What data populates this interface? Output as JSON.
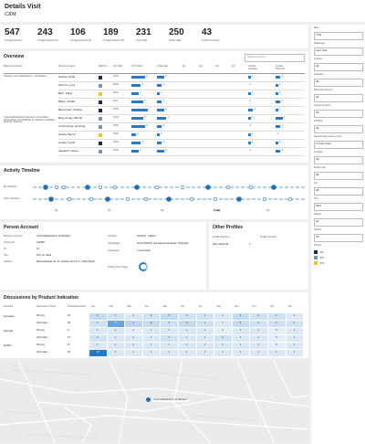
{
  "header": {
    "title": "Details Visit",
    "subtitle": "CRM"
  },
  "kpis": [
    {
      "value": "547",
      "label": "# Target Doctors"
    },
    {
      "value": "243",
      "label": "# Target Doctors P1"
    },
    {
      "value": "106",
      "label": "# Target Doctors P2"
    },
    {
      "value": "189",
      "label": "# Target Doctors P3"
    },
    {
      "value": "231",
      "label": "# CP Calls"
    },
    {
      "value": "250",
      "label": "# F2F Calls"
    },
    {
      "value": "43",
      "label": "# Other Contacts"
    }
  ],
  "filters": [
    {
      "label": "Date",
      "value": "YTD"
    },
    {
      "label": "Datarange",
      "value": "Last Year"
    },
    {
      "label": "Product",
      "value": "All"
    },
    {
      "label": "Indication",
      "value": "All"
    },
    {
      "label": "Business Account",
      "value": "All"
    },
    {
      "label": "Person Account",
      "value": "All"
    },
    {
      "label": "Profiling",
      "value": "All"
    },
    {
      "label": "Speed Target Group Code",
      "value": "Current Year"
    },
    {
      "label": "# Target",
      "value": "All"
    },
    {
      "label": "Email Type",
      "value": "All"
    },
    {
      "label": "Pot",
      "value": "All"
    },
    {
      "label": "PL2",
      "value": "CPA"
    },
    {
      "label": "Region",
      "value": "All"
    },
    {
      "label": "District",
      "value": "All"
    }
  ],
  "priority_legend": {
    "label": "Priority",
    "items": [
      {
        "name": "P1",
        "color": "#1d2a4a"
      },
      {
        "name": "P2",
        "color": "#7f93ad"
      },
      {
        "name": "P3",
        "color": "#f2c230"
      }
    ]
  },
  "overview": {
    "title": "Overview",
    "search": "Search Person",
    "columns": [
      "Business Account",
      "Person Account",
      "Mail Pro",
      "Zim Sp8",
      "# Of Visits",
      "# CE Calls",
      "Q1",
      "Q2",
      "Q3",
      "Q4",
      "# Other Activities",
      "# Calls Planned"
    ],
    "rows": [
      {
        "business": "Charité Universitätsklinikum, Großhadern",
        "person": "Abruha, Zuha",
        "priority": "P1",
        "zim": "OPN",
        "visits": 6,
        "calls": 3,
        "other": 1,
        "planned": 2
      },
      {
        "business": null,
        "person": "Ashrum, Lura",
        "priority": "P2",
        "zim": "MAD",
        "visits": 4,
        "calls": 2,
        "other": 0,
        "planned": 1
      },
      {
        "business": null,
        "person": "Barz, Katja",
        "priority": "P3",
        "zim": "NGZ",
        "visits": 3,
        "calls": 1,
        "other": 1,
        "planned": 1
      },
      {
        "business": null,
        "person": "Bauer, Schaft",
        "priority": "P1",
        "zim": "NLZ",
        "visits": 5,
        "calls": 2,
        "other": 0,
        "planned": 2
      },
      {
        "business": null,
        "person": "Berg-Kratz, Kristina",
        "priority": "P1",
        "zim": "OPN",
        "visits": 7,
        "calls": 3,
        "other": 2,
        "planned": 1
      },
      {
        "business": "Universitätsklinikum Rostock / Universitäts-Frauenklinik und Poliklinik am Klinikum Südstadt Rostock, Rostock",
        "person": "Berg-Ameg, Wendy",
        "priority": "P2",
        "zim": "OPN",
        "visits": 5,
        "calls": 4,
        "other": 1,
        "planned": 3
      },
      {
        "business": null,
        "person": "Cuchenberg, Henning",
        "priority": "P2",
        "zim": "OPN",
        "visits": 6,
        "calls": 2,
        "other": 0,
        "planned": 2
      },
      {
        "business": null,
        "person": "Gerlas, Bernd",
        "priority": "P3",
        "zim": "OPN",
        "visits": 2,
        "calls": 1,
        "other": 1,
        "planned": 0
      },
      {
        "business": null,
        "person": "Gyrlas, Frank",
        "priority": "P1",
        "zim": "OPN",
        "visits": 4,
        "calls": 2,
        "other": 1,
        "planned": 1
      },
      {
        "business": null,
        "person": "Jagodzki, Diana",
        "priority": "P2",
        "zim": "OPN",
        "visits": 3,
        "calls": 3,
        "other": 0,
        "planned": 2
      }
    ]
  },
  "timeline": {
    "title": "Activity Timeline",
    "rows": [
      "My Activities",
      "Other Activities"
    ],
    "axis": [
      "Q1",
      "Q2",
      "Q3",
      "Today",
      "Q4"
    ]
  },
  "person_account": {
    "title": "Person Account",
    "fields": [
      {
        "label": "Business Account",
        "value": "Universitätsklinikum Großhadern"
      },
      {
        "label": "Charité ID",
        "value": "123456"
      },
      {
        "label": "ID",
        "value": "10"
      },
      {
        "label": "Title",
        "value": "Prof. Dr. Hilde"
      },
      {
        "label": "Address",
        "value": "Bischof-Meiser-Str. 37, Kaiserin Zimmt 37, 12347 Berlin"
      }
    ],
    "fields2": [
      {
        "label": "Function",
        "value": "Oberarzt - Station"
      },
      {
        "label": "Specialities",
        "value": "Innere Medizin und Gastroenterologie, Onkologie"
      },
      {
        "label": "Secretariat",
        "value": "1 Secretariat"
      }
    ],
    "share_label": "Activity Type Share"
  },
  "other_profiles": {
    "title": "Other Profiles",
    "columns": [
      "Profile Quantum",
      "Profile Sources"
    ],
    "rows": [
      [
        "NKG Zielkunde",
        "6"
      ]
    ]
  },
  "discussions": {
    "title": "Discussions by Product Indication",
    "columns": [
      "Products",
      "Discussion Priority",
      "Total Discussions",
      "Jan",
      "Feb",
      "Mar",
      "Apr",
      "May",
      "Jun",
      "Jul",
      "Aug",
      "Sep",
      "Oct",
      "Nov",
      "Dec"
    ],
    "rows": [
      {
        "product": "Hexapilo",
        "priority": "Primary",
        "total": 24,
        "months": [
          3,
          2,
          1,
          2,
          3,
          2,
          2,
          1,
          3,
          2,
          2,
          1
        ]
      },
      {
        "product": null,
        "priority": "Secondary",
        "total": 38,
        "months": [
          2,
          12,
          4,
          3,
          2,
          3,
          2,
          1,
          3,
          2,
          2,
          2
        ]
      },
      {
        "product": "Kemple",
        "priority": "Primary",
        "total": 9,
        "months": [
          1,
          1,
          0,
          1,
          1,
          1,
          1,
          0,
          1,
          1,
          0,
          1
        ]
      },
      {
        "product": null,
        "priority": "Secondary",
        "total": 14,
        "months": [
          2,
          1,
          1,
          1,
          2,
          1,
          1,
          2,
          1,
          1,
          0,
          1
        ]
      },
      {
        "product": "Rebilo",
        "priority": "Primary",
        "total": 11,
        "months": [
          1,
          1,
          1,
          1,
          1,
          1,
          1,
          1,
          1,
          1,
          0,
          1
        ]
      },
      {
        "product": null,
        "priority": "Secondary",
        "total": 30,
        "months": [
          19,
          1,
          1,
          1,
          1,
          1,
          1,
          1,
          1,
          1,
          1,
          1
        ]
      }
    ]
  },
  "map": {
    "marker": "Universitätsklinikum Großhadern"
  }
}
